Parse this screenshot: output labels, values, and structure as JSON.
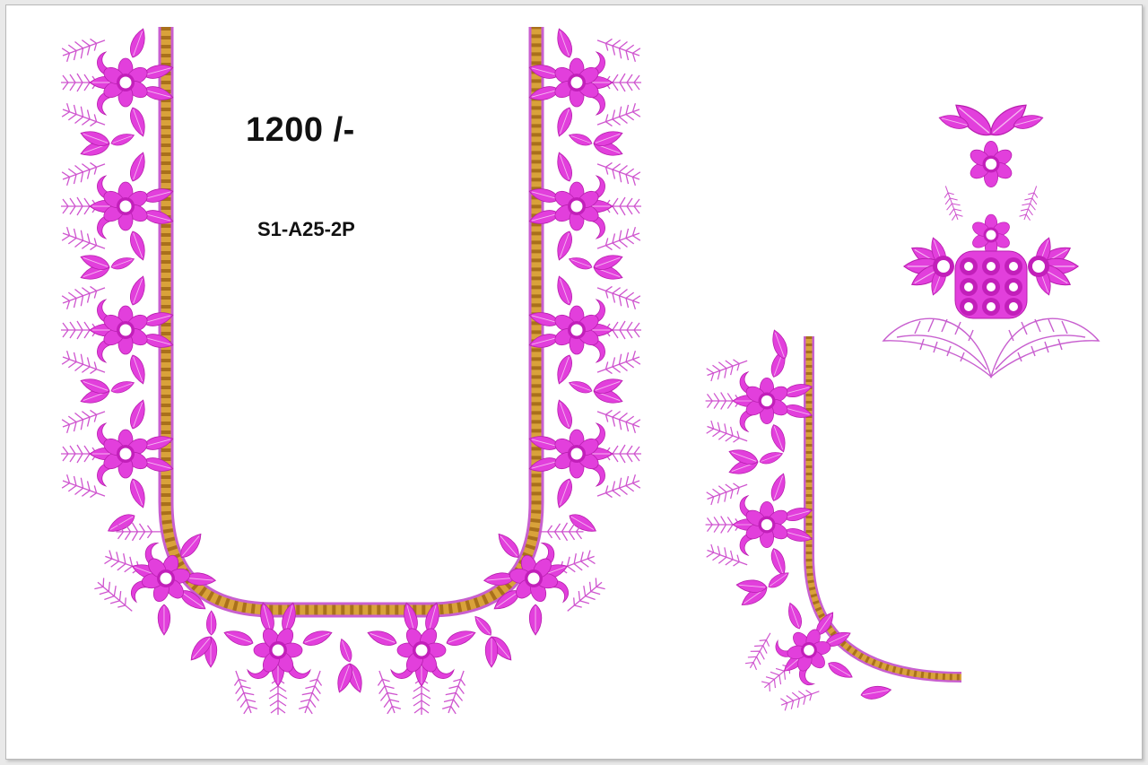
{
  "price_text": "1200 /-",
  "design_code": "S1-A25-2P",
  "colors": {
    "thread_pink": "#e23fdc",
    "thread_pink_dark": "#c21fba",
    "thread_pink_light": "#f6b6f1",
    "thread_lilac": "#c85fcf",
    "thread_gold": "#d9a23a",
    "thread_gold_dark": "#a9701b",
    "background": "#ffffff"
  },
  "artwork": {
    "icons": [
      "neckline-embroidery-motif",
      "sleeve-embroidery-motif",
      "floral-butta-motif"
    ]
  }
}
